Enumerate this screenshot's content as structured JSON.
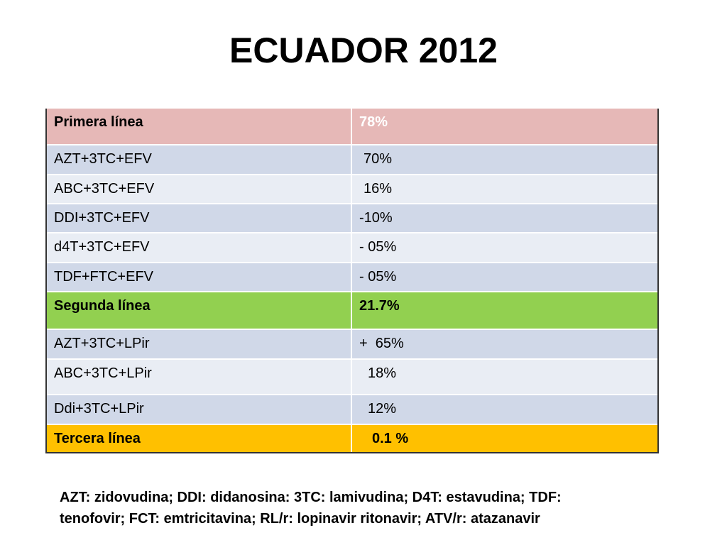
{
  "title": "ECUADOR 2012",
  "table": {
    "rows": [
      [
        "Primera línea",
        "78%"
      ],
      [
        "AZT+3TC+EFV",
        "70%"
      ],
      [
        "ABC+3TC+EFV",
        "16%"
      ],
      [
        "DDI+3TC+EFV",
        "-10%"
      ],
      [
        "d4T+3TC+EFV",
        "- 05%"
      ],
      [
        "TDF+FTC+EFV",
        "- 05%"
      ],
      [
        "Segunda línea",
        "21.7%"
      ],
      [
        "AZT+3TC+LPir",
        "+  65%"
      ],
      [
        "ABC+3TC+LPir",
        "18%"
      ],
      [
        "Ddi+3TC+LPir",
        "12%"
      ],
      [
        "Tercera línea",
        "0.1 %"
      ]
    ]
  },
  "footnote": {
    "lines": [
      "AZT: zidovudina; DDI: didanosina: 3TC: lamivudina; D4T: estavudina; TDF:",
      "tenofovir; FCT: emtricitavina; RL/r: lopinavir ritonavir; ATV/r: atazanavir"
    ]
  }
}
